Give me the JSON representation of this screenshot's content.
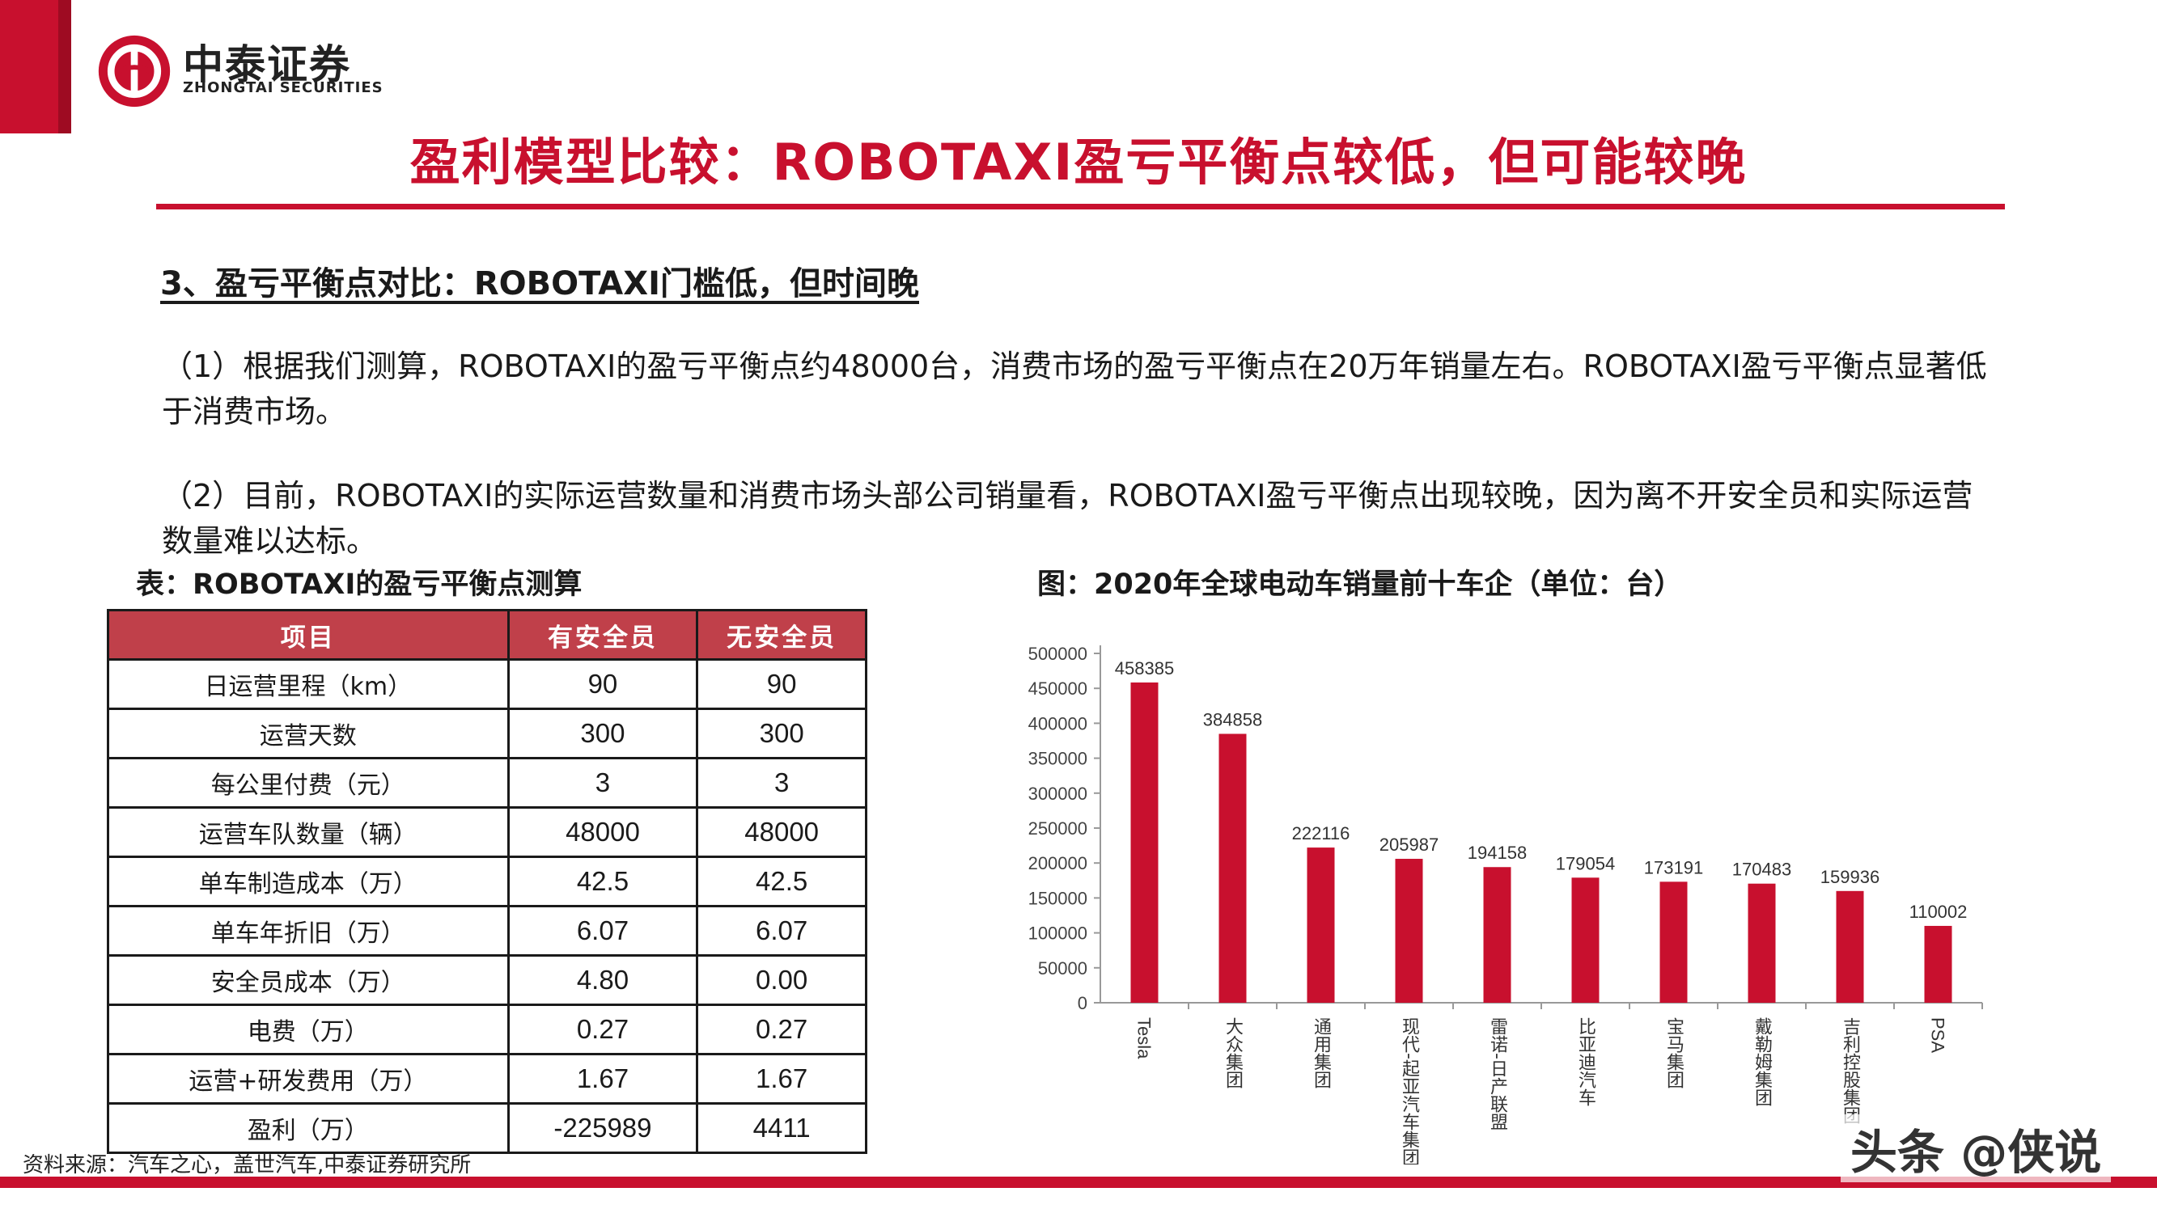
{
  "brand": {
    "name_cn": "中泰证券",
    "name_en": "ZHONGTAI SECURITIES",
    "color": "#c8102e"
  },
  "slide": {
    "title": "盈利模型比较：ROBOTAXI盈亏平衡点较低，但可能较晚",
    "section_heading": "3、盈亏平衡点对比：ROBOTAXI门槛低，但时间晚",
    "para1": "（1）根据我们测算，ROBOTAXI的盈亏平衡点约48000台，消费市场的盈亏平衡点在20万年销量左右。ROBOTAXI盈亏平衡点显著低于消费市场。",
    "para2": "（2）目前，ROBOTAXI的实际运营数量和消费市场头部公司销量看，ROBOTAXI盈亏平衡点出现较晚，因为离不开安全员和实际运营数量难以达标。",
    "source": "资料来源：汽车之心，盖世汽车,中泰证券研究所"
  },
  "table": {
    "caption": "表：ROBOTAXI的盈亏平衡点测算",
    "headers": [
      "项目",
      "有安全员",
      "无安全员"
    ],
    "rows": [
      [
        "日运营里程（km）",
        "90",
        "90"
      ],
      [
        "运营天数",
        "300",
        "300"
      ],
      [
        "每公里付费（元）",
        "3",
        "3"
      ],
      [
        "运营车队数量（辆）",
        "48000",
        "48000"
      ],
      [
        "单车制造成本（万）",
        "42.5",
        "42.5"
      ],
      [
        "单车年折旧（万）",
        "6.07",
        "6.07"
      ],
      [
        "安全员成本（万）",
        "4.80",
        "0.00"
      ],
      [
        "电费（万）",
        "0.27",
        "0.27"
      ],
      [
        "运营+研发费用（万）",
        "1.67",
        "1.67"
      ],
      [
        "盈利（万）",
        "-225989",
        "4411"
      ]
    ]
  },
  "chart_caption": "图：2020年全球电动车销量前十车企（单位：台）",
  "chart_data": {
    "type": "bar",
    "title": "",
    "xlabel": "",
    "ylabel": "",
    "ylim": [
      0,
      500000
    ],
    "yticks": [
      0,
      50000,
      100000,
      150000,
      200000,
      250000,
      300000,
      350000,
      400000,
      450000,
      500000
    ],
    "categories": [
      "Tesla",
      "大众集团",
      "通用集团",
      "现代-起亚汽车集团",
      "雷诺-日产联盟",
      "比亚迪汽车",
      "宝马集团",
      "戴勒姆集团",
      "吉利控股集团",
      "PSA"
    ],
    "values": [
      458385,
      384858,
      222116,
      205987,
      194158,
      179054,
      173191,
      170483,
      159936,
      110002
    ],
    "bar_color": "#c8102e",
    "grid": false,
    "legend": "none"
  },
  "watermark": "头条 @侠说"
}
